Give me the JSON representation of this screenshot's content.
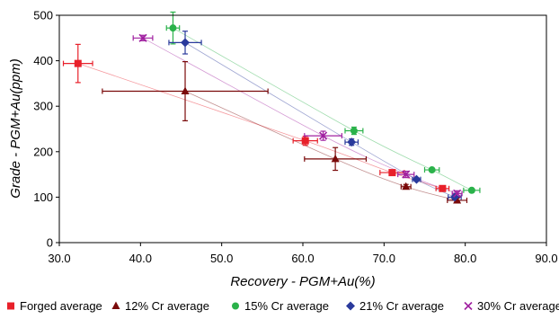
{
  "chart_data": {
    "type": "scatter",
    "title": "",
    "xlabel": "Recovery - PGM+Au(%)",
    "ylabel": "Grade - PGM+Au(ppm)",
    "xlim": [
      30.0,
      90.0
    ],
    "ylim": [
      0,
      500
    ],
    "x_ticks": [
      "30.0",
      "40.0",
      "50.0",
      "60.0",
      "70.0",
      "80.0",
      "90.0"
    ],
    "y_ticks": [
      "0",
      "100",
      "200",
      "300",
      "400",
      "500"
    ],
    "grid": false,
    "legend_position": "bottom",
    "series": [
      {
        "name": "Forged average",
        "color": "#e8202a",
        "marker": "square",
        "points": [
          {
            "x": 32.3,
            "y": 394,
            "xerr": 1.8,
            "yerr": 42
          },
          {
            "x": 60.3,
            "y": 224,
            "xerr": 1.5,
            "yerr": 10
          },
          {
            "x": 71.0,
            "y": 154,
            "xerr": 1.5,
            "yerr": 4
          },
          {
            "x": 77.2,
            "y": 119,
            "xerr": 0.8,
            "yerr": 5
          }
        ]
      },
      {
        "name": "12% Cr average",
        "color": "#7a0a0a",
        "marker": "triangle",
        "points": [
          {
            "x": 45.5,
            "y": 333,
            "xerr": 10.2,
            "yerr": 65
          },
          {
            "x": 64.0,
            "y": 184,
            "xerr": 3.8,
            "yerr": 25
          },
          {
            "x": 72.7,
            "y": 123,
            "xerr": 0.6,
            "yerr": 5
          },
          {
            "x": 79.0,
            "y": 93,
            "xerr": 1.2,
            "yerr": 5
          }
        ]
      },
      {
        "name": "15% Cr average",
        "color": "#2ab24a",
        "marker": "circle",
        "points": [
          {
            "x": 44.0,
            "y": 472,
            "xerr": 0.8,
            "yerr": 35
          },
          {
            "x": 66.3,
            "y": 246,
            "xerr": 1.1,
            "yerr": 8
          },
          {
            "x": 75.9,
            "y": 160,
            "xerr": 0.9,
            "yerr": 3
          },
          {
            "x": 80.8,
            "y": 115,
            "xerr": 1.0,
            "yerr": 4
          }
        ]
      },
      {
        "name": "21% Cr average",
        "color": "#2a3a9c",
        "marker": "diamond",
        "points": [
          {
            "x": 45.5,
            "y": 440,
            "xerr": 2.0,
            "yerr": 25
          },
          {
            "x": 66.0,
            "y": 221,
            "xerr": 0.8,
            "yerr": 7
          },
          {
            "x": 74.0,
            "y": 139,
            "xerr": 0.5,
            "yerr": 4
          },
          {
            "x": 78.7,
            "y": 100,
            "xerr": 0.8,
            "yerr": 5
          }
        ]
      },
      {
        "name": "30% Cr average",
        "color": "#a020a0",
        "marker": "x",
        "points": [
          {
            "x": 40.3,
            "y": 450,
            "xerr": 1.2,
            "yerr": 6
          },
          {
            "x": 62.5,
            "y": 235,
            "xerr": 2.3,
            "yerr": 10
          },
          {
            "x": 72.7,
            "y": 150,
            "xerr": 1.0,
            "yerr": 7
          },
          {
            "x": 79.0,
            "y": 108,
            "xerr": 0.6,
            "yerr": 6
          }
        ]
      }
    ]
  }
}
